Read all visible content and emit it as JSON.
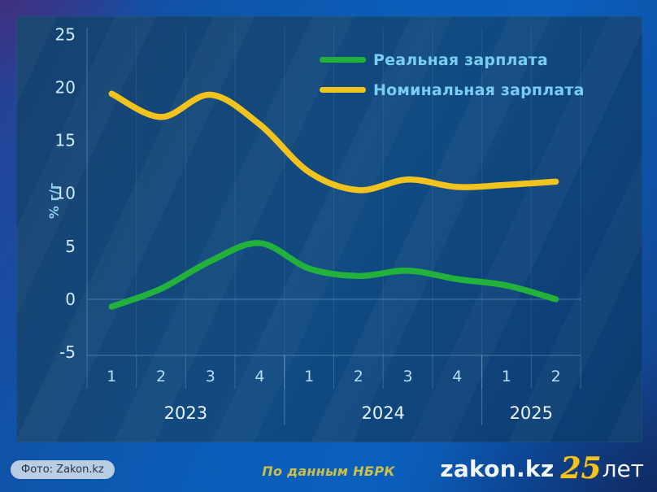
{
  "chart_data": {
    "type": "line",
    "title": "",
    "ylabel": "% г/г",
    "x_quarters": [
      "1",
      "2",
      "3",
      "4",
      "1",
      "2",
      "3",
      "4",
      "1",
      "2"
    ],
    "year_groups": [
      {
        "label": "2023",
        "quarters": 4
      },
      {
        "label": "2024",
        "quarters": 4
      },
      {
        "label": "2025",
        "quarters": 2
      }
    ],
    "yticks": [
      25,
      20,
      15,
      10,
      5,
      0,
      -5
    ],
    "ylim": [
      -5,
      25
    ],
    "grid": true,
    "legend_position": "top-center",
    "series": [
      {
        "name": "Реальная зарплата",
        "color": "#22b23c",
        "values": [
          -0.7,
          1.0,
          3.6,
          5.3,
          2.9,
          2.2,
          2.7,
          1.9,
          1.3,
          0.0
        ]
      },
      {
        "name": "Номинальная зарплата",
        "color": "#f2c21d",
        "values": [
          19.4,
          17.2,
          19.3,
          16.5,
          12.0,
          10.3,
          11.3,
          10.6,
          10.8,
          11.1
        ]
      }
    ]
  },
  "footer": {
    "source": "По данным НБРК",
    "photo_credit": "Фото: Zakon.kz",
    "logo": {
      "site": "zakon.kz",
      "anniversary_number": "25",
      "anniversary_suffix": "лет"
    }
  },
  "colors": {
    "legend_text": "#79cdf2",
    "axis_tick_text": "#cfe9fb",
    "quarter_text": "#b5def4",
    "year_text": "#e8f3fc",
    "grid": "#9ccdea",
    "source_text": "#cdbf49",
    "logo_yellow": "#f2c21d"
  }
}
